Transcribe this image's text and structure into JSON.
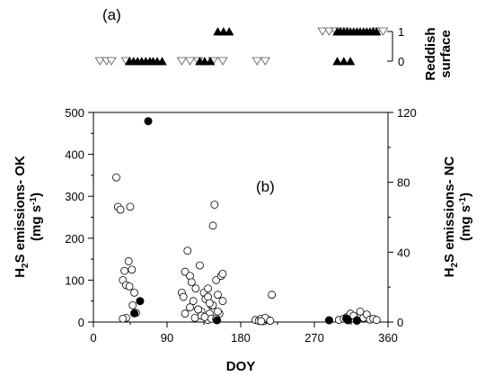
{
  "chart_data": [
    {
      "panel_label": "(a)",
      "type": "scatter",
      "ylabel": [
        "Reddish",
        "surface"
      ],
      "yticks": [
        "0",
        "1"
      ],
      "ylim": [
        0,
        1
      ],
      "series": [
        {
          "marker": "open-triangle-down",
          "x": [
            8,
            16,
            22,
            40,
            108,
            118,
            128,
            146,
            158,
            200,
            210,
            280,
            288,
            296,
            306,
            346,
            354
          ],
          "y": [
            0,
            0,
            0,
            0,
            0,
            0,
            0,
            0,
            0,
            0,
            0,
            1,
            1,
            1,
            1,
            1,
            1
          ]
        },
        {
          "marker": "filled-triangle-up",
          "x": [
            44,
            49,
            54,
            59,
            64,
            69,
            73,
            78,
            84,
            130,
            136,
            143,
            152,
            159,
            166,
            298,
            302,
            306,
            310,
            314,
            318,
            322,
            326,
            330,
            334,
            338,
            342,
            346,
            298,
            306,
            314
          ],
          "y": [
            0,
            0,
            0,
            0,
            0,
            0,
            0,
            0,
            0,
            0,
            0,
            0,
            1,
            1,
            1,
            1,
            1,
            1,
            1,
            1,
            1,
            1,
            1,
            1,
            1,
            1,
            1,
            1,
            0,
            0,
            0
          ]
        }
      ]
    },
    {
      "panel_label": "(b)",
      "type": "scatter",
      "xlabel": "DOY",
      "ylabel_left": [
        "H",
        "2",
        "S emissions- OK"
      ],
      "ylabel_left_units": [
        "(mg s",
        "-1",
        ")"
      ],
      "ylabel_right": [
        "H",
        "2",
        "S emissions- NC"
      ],
      "ylabel_right_units": [
        "(mg s",
        "-1",
        ")"
      ],
      "xlim": [
        0,
        360
      ],
      "xticks": [
        "0",
        "90",
        "180",
        "270",
        "360"
      ],
      "ylim_left": [
        0,
        500
      ],
      "yticks_left": [
        "0",
        "100",
        "200",
        "300",
        "400",
        "500"
      ],
      "ylim_right": [
        0,
        120
      ],
      "yticks_right": [
        "0",
        "40",
        "80",
        "120"
      ],
      "series": [
        {
          "marker": "open-circle",
          "axis": "left",
          "x": [
            28,
            30,
            33,
            36,
            38,
            40,
            43,
            45,
            47,
            50,
            52,
            40,
            44,
            48,
            36,
            108,
            110,
            112,
            115,
            118,
            120,
            122,
            125,
            128,
            130,
            132,
            135,
            137,
            140,
            142,
            144,
            146,
            148,
            150,
            152,
            154,
            156,
            158,
            112,
            118,
            124,
            132,
            140,
            146,
            152,
            158,
            140,
            144,
            128,
            136,
            142,
            150,
            198,
            202,
            205,
            208,
            212,
            215,
            218,
            210,
            205,
            216,
            300,
            306,
            310,
            314,
            318,
            322,
            326,
            330,
            334,
            338,
            342,
            346
          ],
          "y": [
            345,
            275,
            268,
            100,
            122,
            88,
            145,
            275,
            125,
            70,
            22,
            10,
            85,
            40,
            8,
            70,
            60,
            120,
            170,
            110,
            95,
            50,
            80,
            30,
            135,
            25,
            70,
            55,
            80,
            20,
            40,
            230,
            280,
            100,
            65,
            20,
            110,
            115,
            20,
            35,
            10,
            15,
            60,
            40,
            25,
            50,
            5,
            8,
            30,
            12,
            45,
            8,
            5,
            3,
            8,
            2,
            6,
            4,
            65,
            10,
            2,
            3,
            5,
            8,
            12,
            20,
            15,
            3,
            25,
            10,
            18,
            6,
            8,
            5
          ]
        },
        {
          "marker": "filled-circle",
          "axis": "right",
          "x": [
            50,
            57,
            67,
            151,
            288,
            309,
            311,
            322
          ],
          "y": [
            5,
            12,
            115,
            1,
            1,
            2,
            1,
            1
          ]
        }
      ]
    }
  ]
}
